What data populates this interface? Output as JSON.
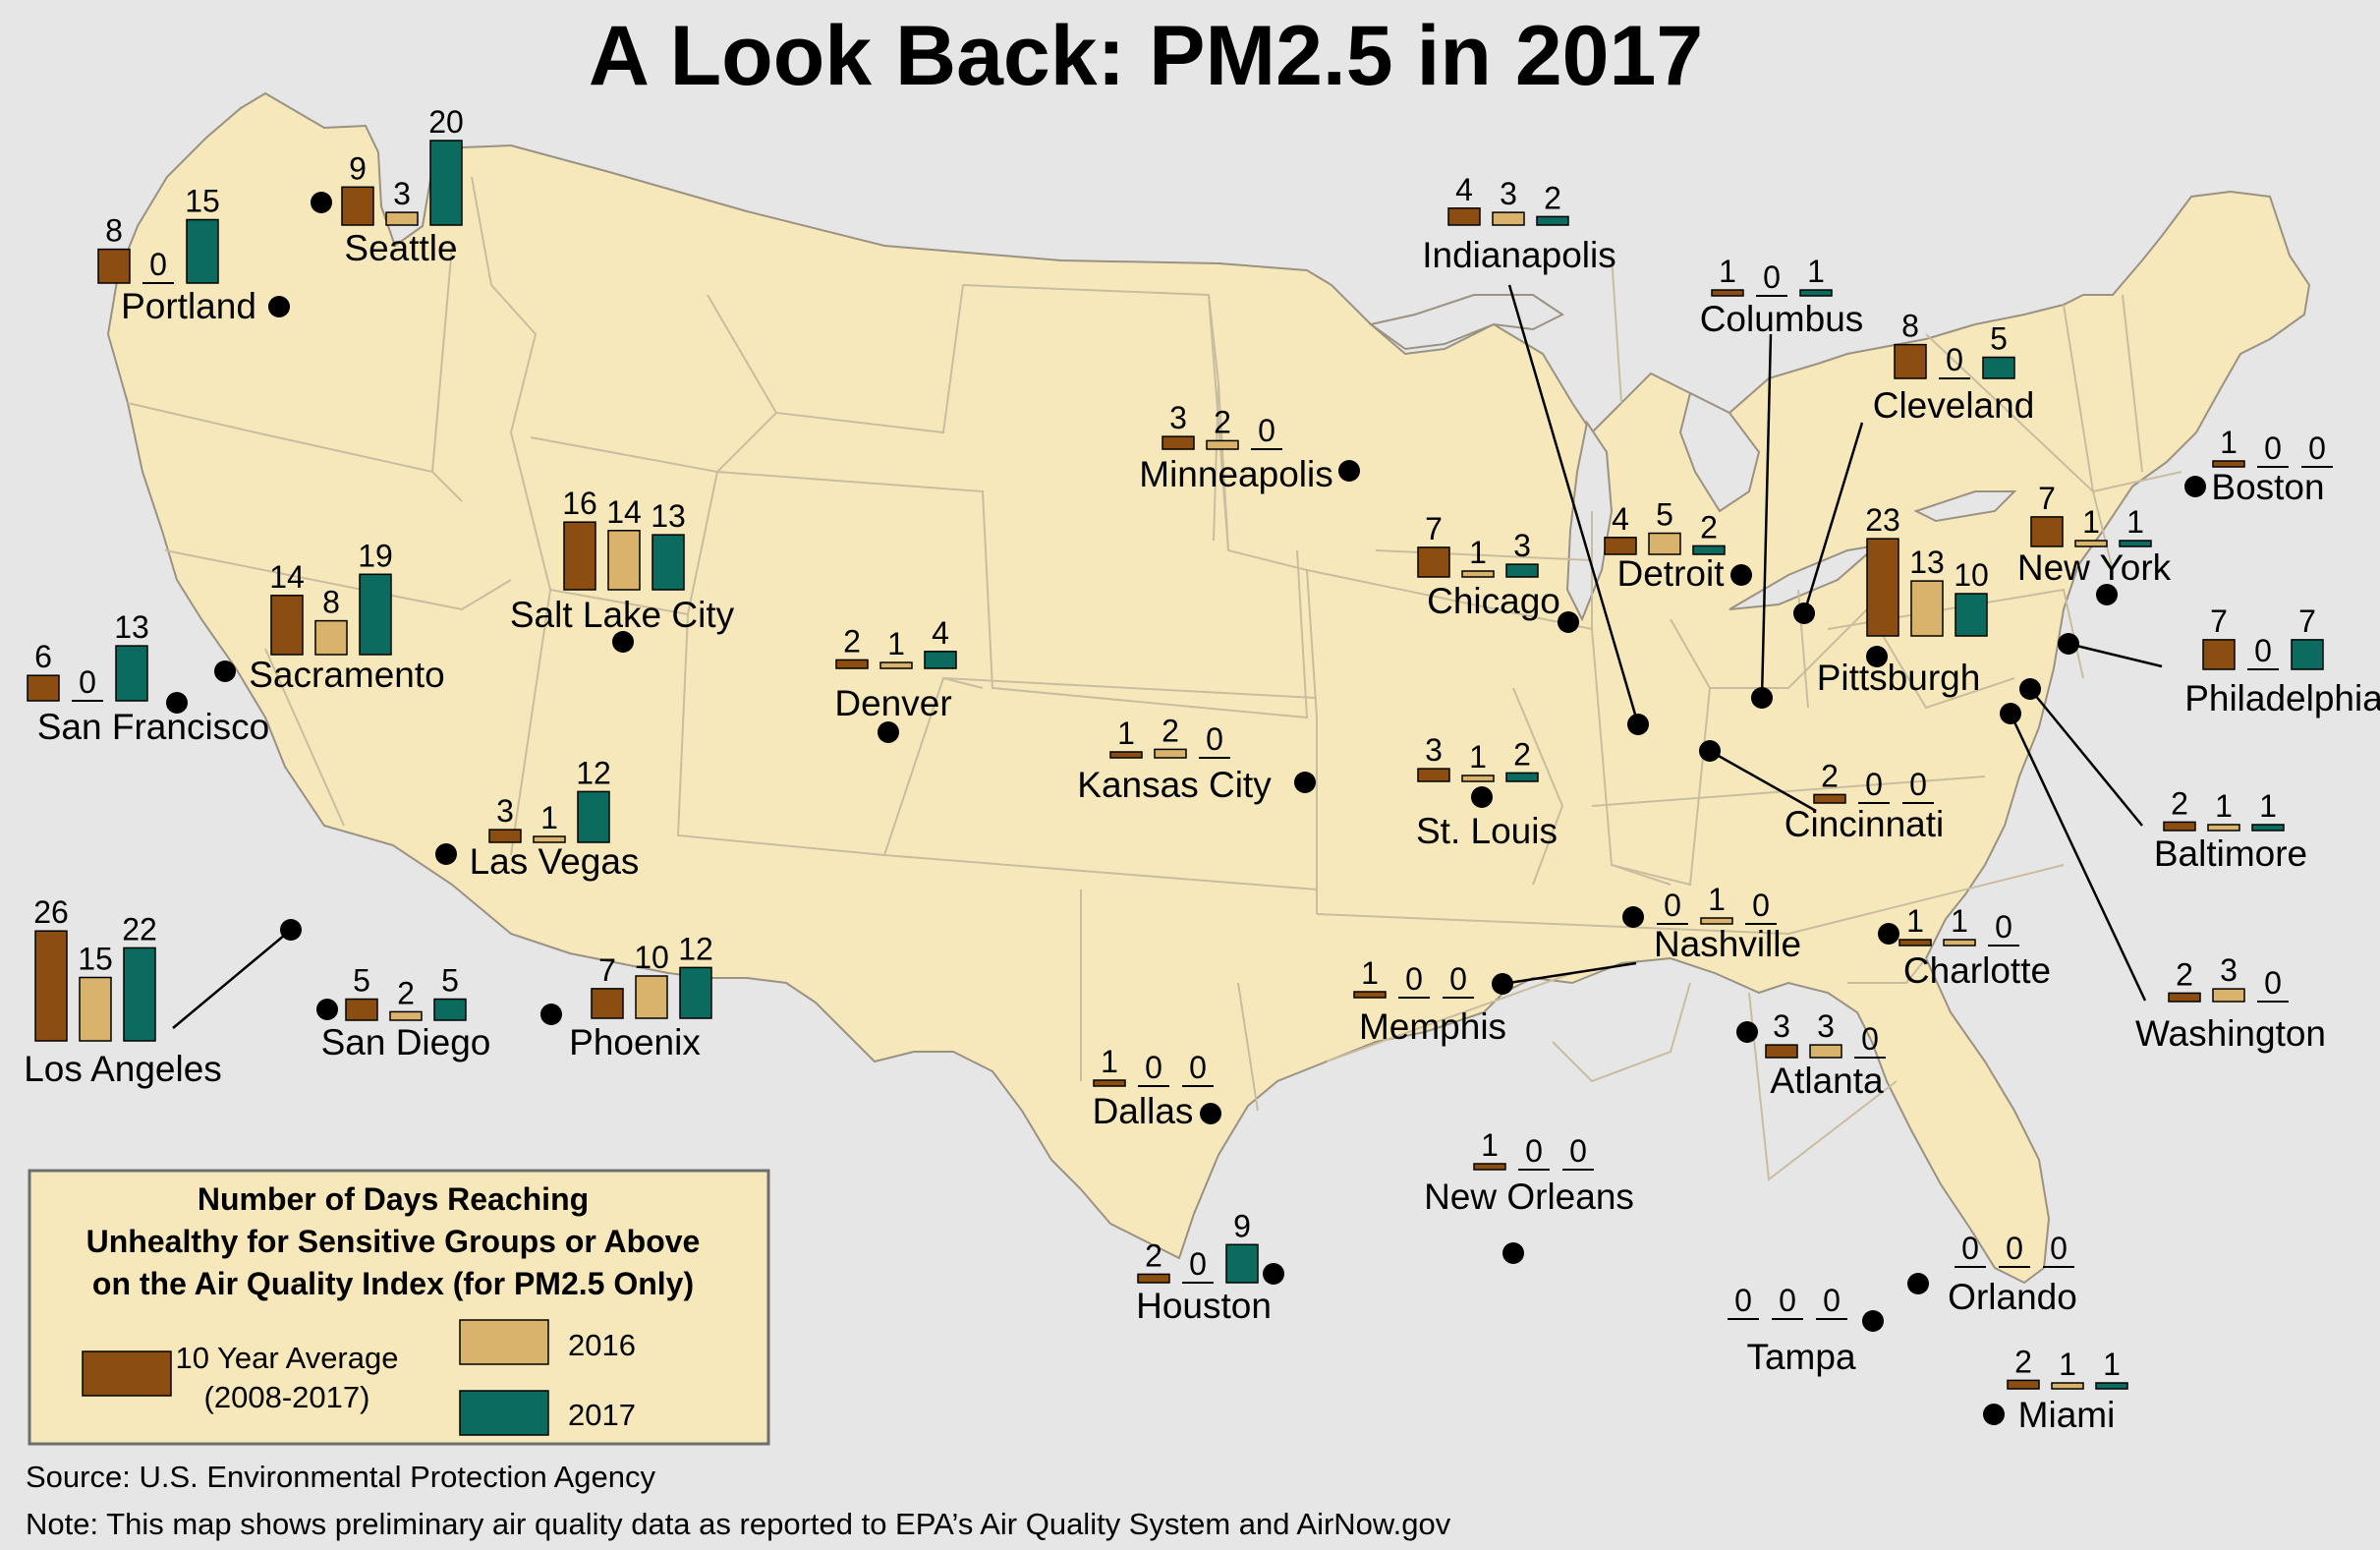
{
  "title": "A Look Back: PM2.5 in 2017",
  "colors": {
    "background": "#e6e6e6",
    "land": "#f7e8bb",
    "state_border": "#c9bda0",
    "coast": "#9a9282",
    "avg": "#8b4e10",
    "y2016": "#d9b36b",
    "y2017": "#0b6b5e",
    "dot": "#000000"
  },
  "legend": {
    "title_lines": [
      "Number of Days Reaching",
      "Unhealthy for Sensitive Groups or Above",
      "on the Air Quality Index (for PM2.5 Only)"
    ],
    "items": [
      {
        "label": "10 Year Average",
        "sublabel": "(2008-2017)",
        "color": "#8b4e10"
      },
      {
        "label": "2016",
        "color": "#d9b36b"
      },
      {
        "label": "2017",
        "color": "#0b6b5e"
      }
    ]
  },
  "source": "Source: U.S. Environmental Protection Agency",
  "note": "Note: This map shows preliminary air quality data as reported to EPA’s Air Quality System and AirNow.gov",
  "chart_data": {
    "type": "bar",
    "series": [
      {
        "name": "10 Year Average"
      },
      {
        "name": "2016"
      },
      {
        "name": "2017"
      }
    ],
    "cities": [
      {
        "name": "Seattle",
        "values": [
          9,
          3,
          20
        ]
      },
      {
        "name": "Portland",
        "values": [
          8,
          0,
          15
        ]
      },
      {
        "name": "San Francisco",
        "values": [
          6,
          0,
          13
        ]
      },
      {
        "name": "Sacramento",
        "values": [
          14,
          8,
          19
        ]
      },
      {
        "name": "Salt Lake City",
        "values": [
          16,
          14,
          13
        ]
      },
      {
        "name": "Las Vegas",
        "values": [
          3,
          1,
          12
        ]
      },
      {
        "name": "Los Angeles",
        "values": [
          26,
          15,
          22
        ]
      },
      {
        "name": "San Diego",
        "values": [
          5,
          2,
          5
        ]
      },
      {
        "name": "Phoenix",
        "values": [
          7,
          10,
          12
        ]
      },
      {
        "name": "Denver",
        "values": [
          2,
          1,
          4
        ]
      },
      {
        "name": "Minneapolis",
        "values": [
          3,
          2,
          0
        ]
      },
      {
        "name": "Kansas City",
        "values": [
          1,
          2,
          0
        ]
      },
      {
        "name": "Dallas",
        "values": [
          1,
          0,
          0
        ]
      },
      {
        "name": "Houston",
        "values": [
          2,
          0,
          9
        ]
      },
      {
        "name": "Indianapolis",
        "values": [
          4,
          3,
          2
        ]
      },
      {
        "name": "Chicago",
        "values": [
          7,
          1,
          3
        ]
      },
      {
        "name": "St. Louis",
        "values": [
          3,
          1,
          2
        ]
      },
      {
        "name": "Memphis",
        "values": [
          1,
          0,
          0
        ]
      },
      {
        "name": "New Orleans",
        "values": [
          1,
          0,
          0
        ]
      },
      {
        "name": "Nashville",
        "values": [
          0,
          1,
          0
        ]
      },
      {
        "name": "Columbus",
        "values": [
          1,
          0,
          1
        ]
      },
      {
        "name": "Detroit",
        "values": [
          4,
          5,
          2
        ]
      },
      {
        "name": "Cleveland",
        "values": [
          8,
          0,
          5
        ]
      },
      {
        "name": "Pittsburgh",
        "values": [
          23,
          13,
          10
        ]
      },
      {
        "name": "Cincinnati",
        "values": [
          2,
          0,
          0
        ]
      },
      {
        "name": "Atlanta",
        "values": [
          3,
          3,
          0
        ]
      },
      {
        "name": "Charlotte",
        "values": [
          1,
          1,
          0
        ]
      },
      {
        "name": "Orlando",
        "values": [
          0,
          0,
          0
        ]
      },
      {
        "name": "Tampa",
        "values": [
          0,
          0,
          0
        ]
      },
      {
        "name": "Miami",
        "values": [
          2,
          1,
          1
        ]
      },
      {
        "name": "New York",
        "values": [
          7,
          1,
          1
        ]
      },
      {
        "name": "Boston",
        "values": [
          1,
          0,
          0
        ]
      },
      {
        "name": "Philadelphia",
        "values": [
          7,
          0,
          7
        ]
      },
      {
        "name": "Baltimore",
        "values": [
          2,
          1,
          1
        ]
      },
      {
        "name": "Washington",
        "values": [
          2,
          3,
          0
        ]
      }
    ]
  }
}
